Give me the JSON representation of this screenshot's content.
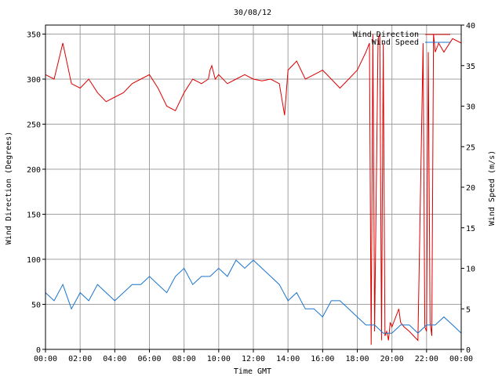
{
  "chart_data": {
    "type": "line",
    "title": "30/08/12",
    "xlabel": "Time GMT",
    "ylabel_left": "Wind Direction (Degrees)",
    "ylabel_right": "Wind Speed (m/s)",
    "x_unit": "hours",
    "xlim": [
      0,
      24
    ],
    "ylim_left": [
      0,
      360
    ],
    "ylim_right": [
      0,
      40
    ],
    "grid": true,
    "legend_position": "top-right",
    "x_ticks": [
      "00:00",
      "02:00",
      "04:00",
      "06:00",
      "08:00",
      "10:00",
      "12:00",
      "14:00",
      "16:00",
      "18:00",
      "20:00",
      "22:00",
      "00:00"
    ],
    "y_ticks_left": [
      "0",
      "50",
      "100",
      "150",
      "200",
      "250",
      "300",
      "350"
    ],
    "y_ticks_right": [
      "0",
      "5",
      "10",
      "15",
      "20",
      "25",
      "30",
      "35",
      "40"
    ],
    "colors": {
      "direction": "#dd0000",
      "speed": "#1874cd",
      "grid": "#a0a0a0",
      "axes": "#000000"
    },
    "series": [
      {
        "name": "Wind Direction",
        "axis": "left",
        "x": [
          0,
          0.5,
          1,
          1.5,
          2,
          2.5,
          3,
          3.5,
          4,
          4.5,
          5,
          5.5,
          6,
          6.5,
          7,
          7.5,
          8,
          8.5,
          9,
          9.4,
          9.5,
          9.6,
          9.8,
          10,
          10.5,
          11,
          11.5,
          12,
          12.5,
          13,
          13.5,
          13.8,
          14,
          14.5,
          15,
          15.5,
          16,
          16.5,
          17,
          17.5,
          18,
          18.5,
          18.7,
          18.8,
          18.9,
          19,
          19.2,
          19.3,
          19.4,
          19.5,
          19.6,
          19.7,
          19.8,
          19.9,
          20,
          20.1,
          20.2,
          20.3,
          20.4,
          20.5,
          20.7,
          21,
          21.5,
          21.8,
          21.9,
          22,
          22.1,
          22.2,
          22.3,
          22.4,
          22.5,
          22.7,
          23,
          23.5,
          24
        ],
        "y": [
          305,
          300,
          340,
          295,
          290,
          300,
          285,
          275,
          280,
          285,
          295,
          300,
          305,
          290,
          270,
          265,
          285,
          300,
          295,
          300,
          310,
          315,
          300,
          305,
          295,
          300,
          305,
          300,
          298,
          300,
          295,
          260,
          310,
          320,
          300,
          305,
          310,
          300,
          290,
          300,
          310,
          330,
          340,
          5,
          350,
          20,
          345,
          350,
          10,
          340,
          15,
          20,
          10,
          30,
          25,
          30,
          35,
          40,
          45,
          30,
          25,
          20,
          10,
          340,
          25,
          20,
          330,
          30,
          15,
          350,
          330,
          340,
          330,
          345,
          340
        ]
      },
      {
        "name": "Wind Speed",
        "axis": "right",
        "x": [
          0,
          0.5,
          1,
          1.5,
          2,
          2.5,
          3,
          3.5,
          4,
          4.5,
          5,
          5.5,
          6,
          6.5,
          7,
          7.5,
          8,
          8.5,
          9,
          9.5,
          10,
          10.5,
          11,
          11.5,
          12,
          12.5,
          13,
          13.5,
          14,
          14.5,
          15,
          15.5,
          16,
          16.5,
          17,
          17.5,
          18,
          18.5,
          19,
          19.5,
          20,
          20.5,
          21,
          21.5,
          22,
          22.5,
          23,
          23.5,
          24
        ],
        "y": [
          7,
          6,
          8,
          5,
          7,
          6,
          8,
          7,
          6,
          7,
          8,
          8,
          9,
          8,
          7,
          9,
          10,
          8,
          9,
          9,
          10,
          9,
          11,
          10,
          11,
          10,
          9,
          8,
          6,
          7,
          5,
          5,
          4,
          6,
          6,
          5,
          4,
          3,
          3,
          2,
          2,
          3,
          3,
          2,
          3,
          3,
          4,
          3,
          2
        ]
      }
    ]
  }
}
